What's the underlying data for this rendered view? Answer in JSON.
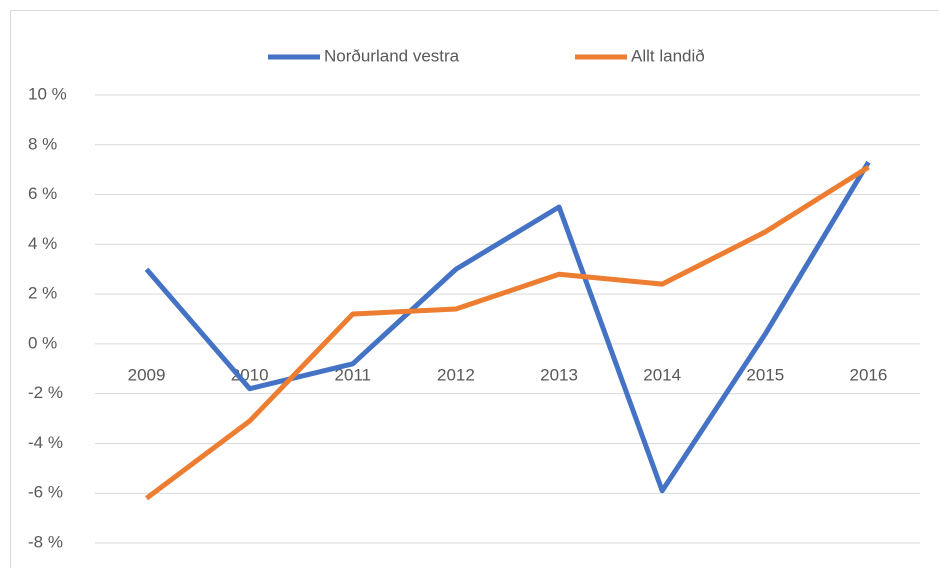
{
  "chart_data": {
    "type": "line",
    "categories": [
      "2009",
      "2010",
      "2011",
      "2012",
      "2013",
      "2014",
      "2015",
      "2016"
    ],
    "series": [
      {
        "name": "Norðurland vestra",
        "color": "#4472c4",
        "values": [
          3.0,
          -1.8,
          -0.8,
          3.0,
          5.5,
          -5.9,
          0.4,
          7.3
        ]
      },
      {
        "name": "Allt landið",
        "color": "#ed7d31",
        "values": [
          -6.2,
          -3.1,
          1.2,
          1.4,
          2.8,
          2.4,
          4.5,
          7.1
        ]
      }
    ],
    "ylim": [
      -8,
      10
    ],
    "yticks": [
      {
        "value": -8,
        "label": "-8 %"
      },
      {
        "value": -6,
        "label": "-6 %"
      },
      {
        "value": -4,
        "label": "-4 %"
      },
      {
        "value": -2,
        "label": "-2 %"
      },
      {
        "value": 0,
        "label": "0 %"
      },
      {
        "value": 2,
        "label": "2 %"
      },
      {
        "value": 4,
        "label": "4 %"
      },
      {
        "value": 6,
        "label": "6 %"
      },
      {
        "value": 8,
        "label": "8 %"
      },
      {
        "value": 10,
        "label": "10 %"
      }
    ],
    "grid": true,
    "legend": "top"
  }
}
